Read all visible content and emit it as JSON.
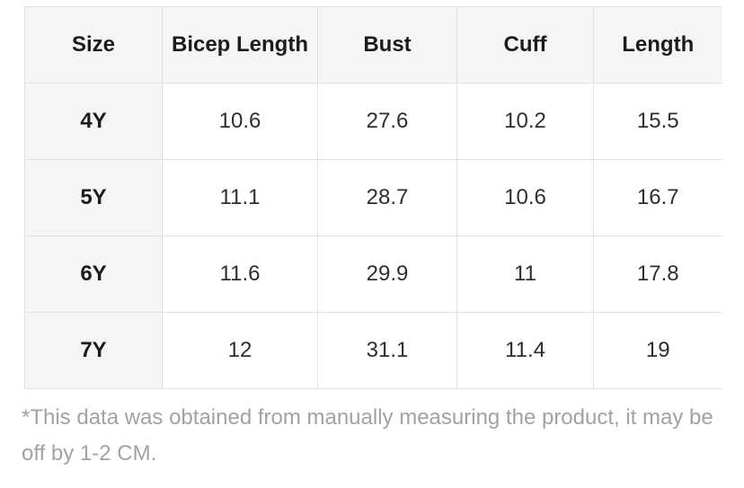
{
  "chart_data": {
    "type": "table",
    "columns": [
      "Size",
      "Bicep Length",
      "Bust",
      "Cuff",
      "Length"
    ],
    "rows": [
      [
        "4Y",
        10.6,
        27.6,
        10.2,
        15.5
      ],
      [
        "5Y",
        11.1,
        28.7,
        10.6,
        16.7
      ],
      [
        "6Y",
        11.6,
        29.9,
        11,
        17.8
      ],
      [
        "7Y",
        12,
        31.1,
        11.4,
        19
      ]
    ],
    "footnote": "*This data was obtained from manually measuring the product, it may be off by 1-2 CM.",
    "layout_hints": {
      "header_row_shaded": true,
      "first_column_shaded": true,
      "grid": true
    }
  },
  "table": {
    "header": [
      "Size",
      "Bicep Length",
      "Bust",
      "Cuff",
      "Length"
    ],
    "rows": [
      [
        "4Y",
        "10.6",
        "27.6",
        "10.2",
        "15.5"
      ],
      [
        "5Y",
        "11.1",
        "28.7",
        "10.6",
        "16.7"
      ],
      [
        "6Y",
        "11.6",
        "29.9",
        "11",
        "17.8"
      ],
      [
        "7Y",
        "12",
        "31.1",
        "11.4",
        "19"
      ]
    ]
  },
  "footnote": "*This data was obtained from manually measuring the product, it may be off by 1-2 CM.",
  "colors": {
    "header_bg": "#f5f5f5",
    "border": "#e1e1e1",
    "header_text": "#1c1c1c",
    "value_text": "#2e2e2e",
    "footnote_text": "#a2a2a2"
  }
}
